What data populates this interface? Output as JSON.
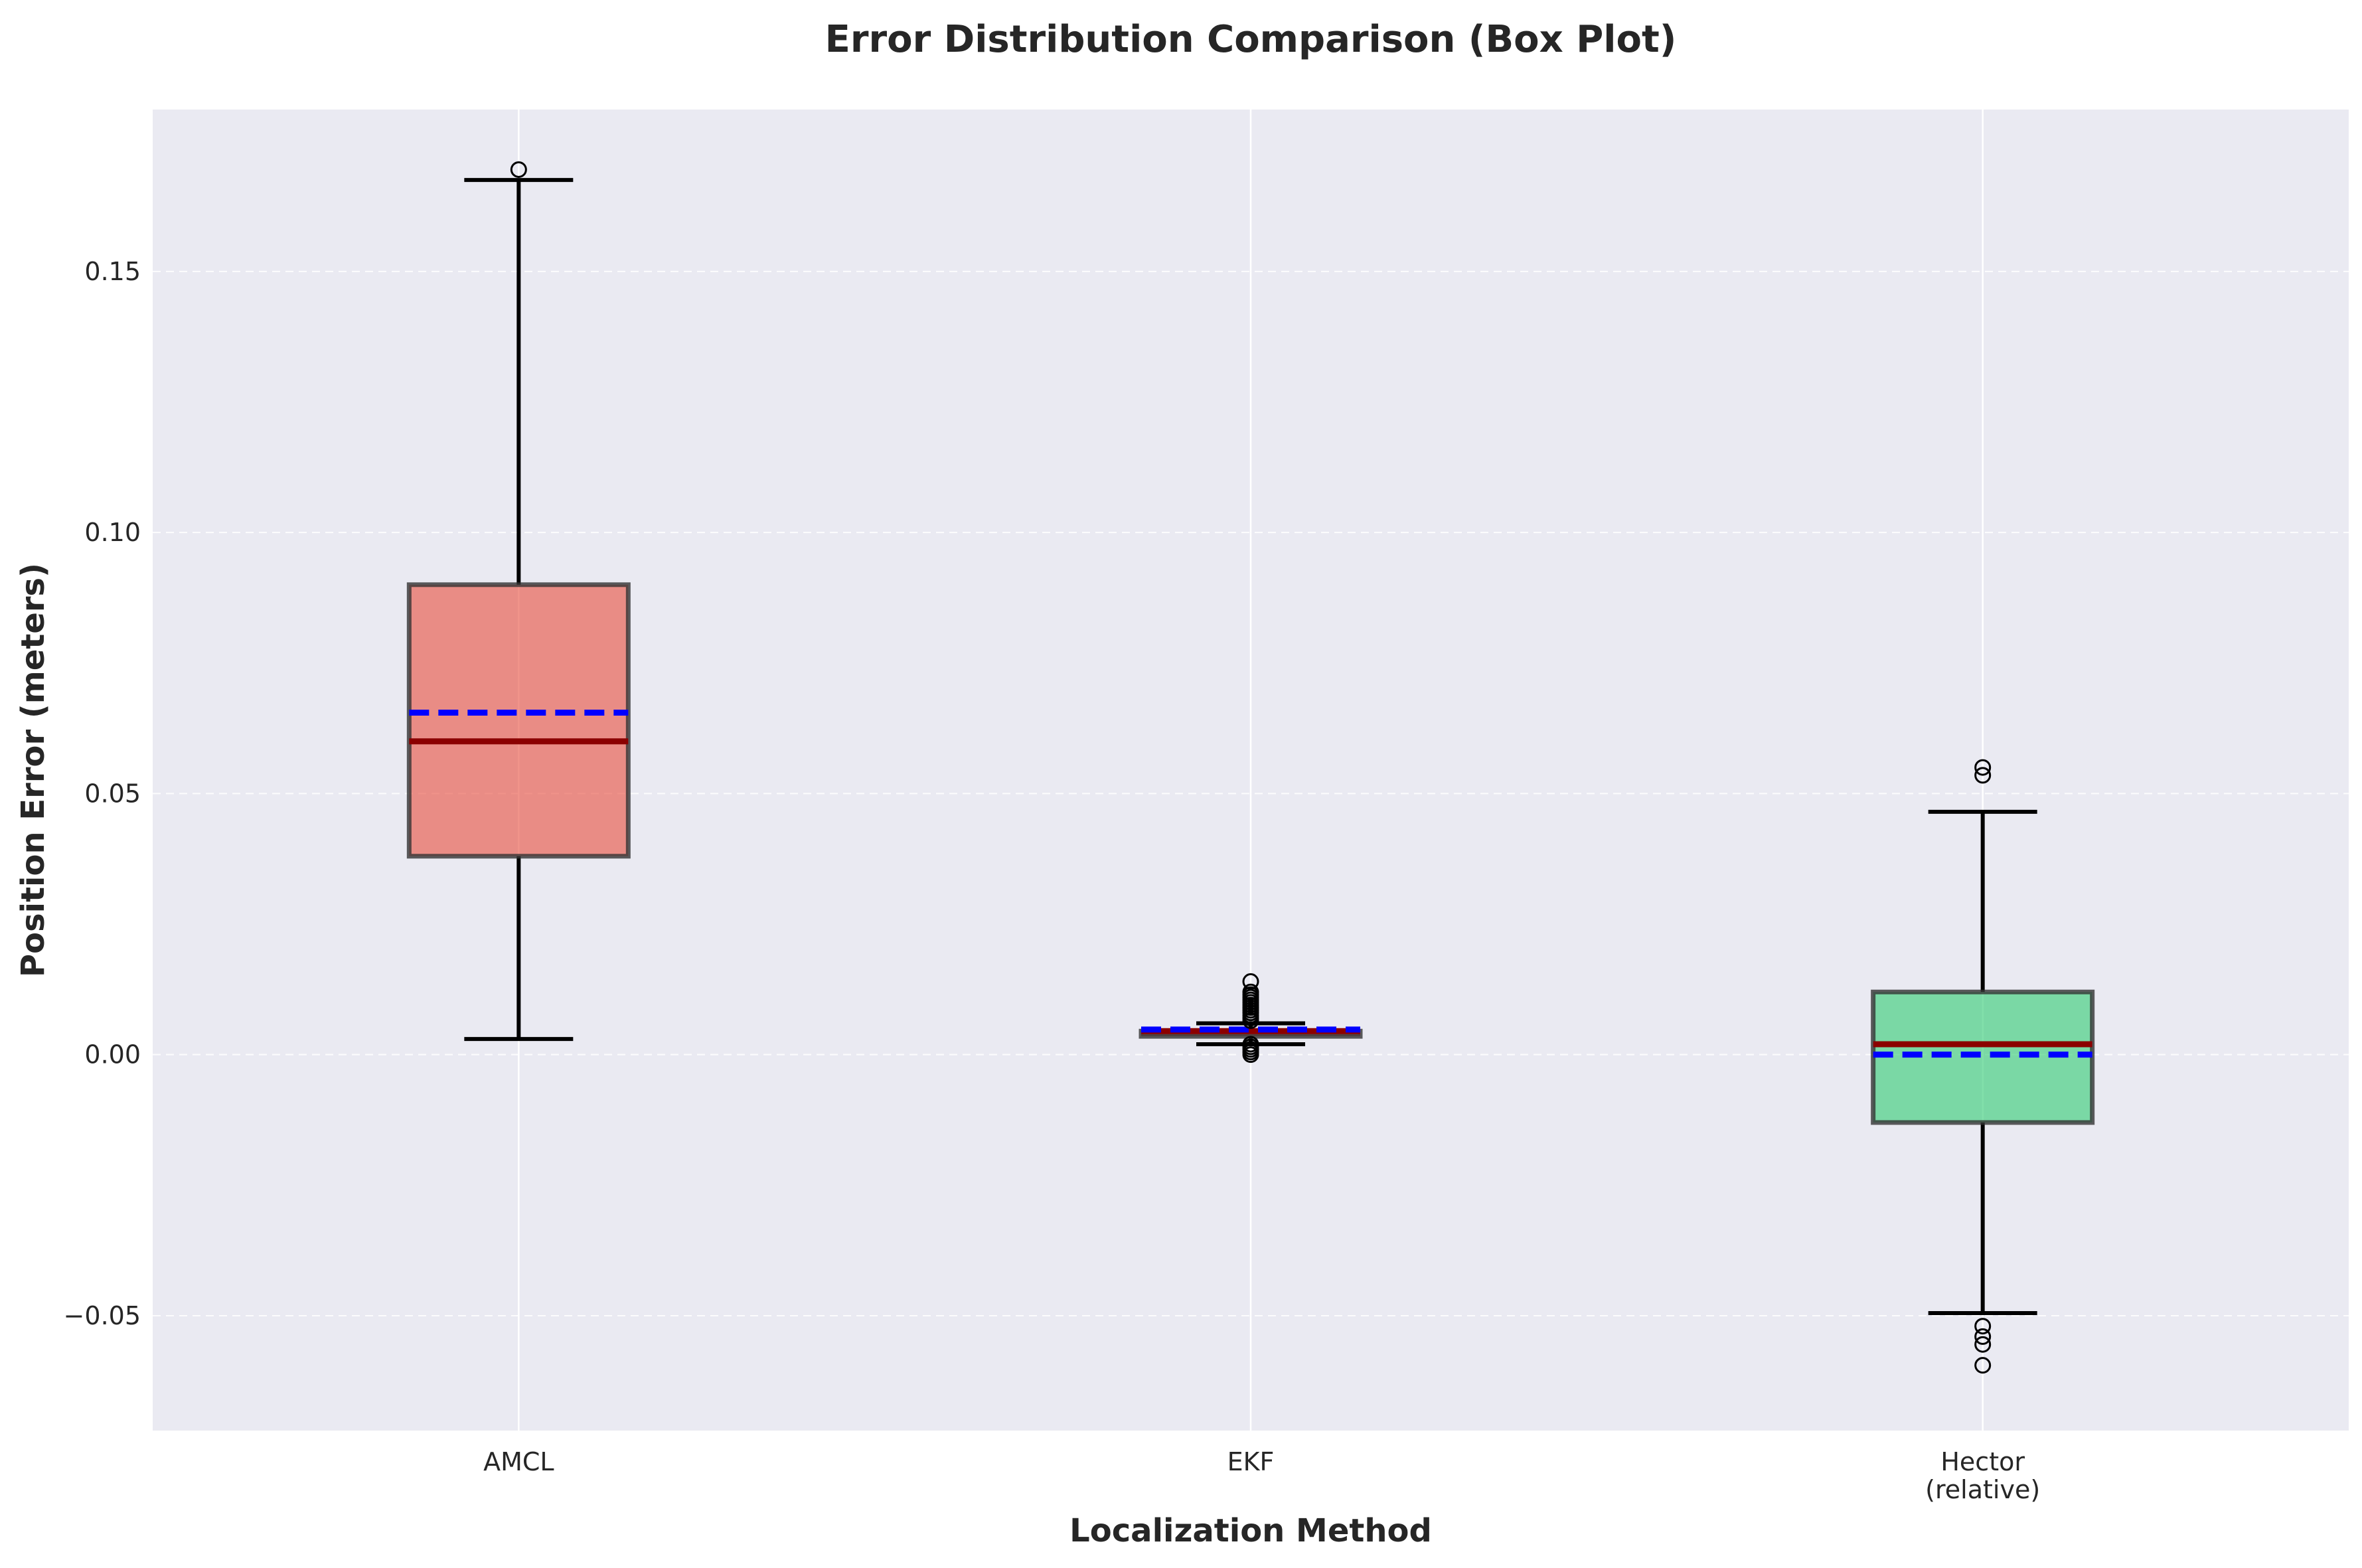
{
  "chart_data": {
    "type": "box",
    "title": "Error Distribution Comparison (Box Plot)",
    "xlabel": "Localization Method",
    "ylabel": "Position Error (meters)",
    "ylim": [
      -0.072,
      0.181
    ],
    "yticks": [
      -0.05,
      0.0,
      0.05,
      0.1,
      0.15
    ],
    "ytick_labels": [
      "−0.05",
      "0.00",
      "0.05",
      "0.10",
      "0.15"
    ],
    "grid": true,
    "categories": [
      {
        "lines": [
          "AMCL"
        ]
      },
      {
        "lines": [
          "EKF"
        ]
      },
      {
        "lines": [
          "Hector",
          "(relative)"
        ]
      }
    ],
    "boxes": [
      {
        "name": "AMCL",
        "whisker_low": 0.003,
        "q1": 0.038,
        "median": 0.06,
        "mean": 0.0655,
        "q3": 0.09,
        "whisker_high": 0.1675,
        "outliers": [
          0.1695
        ],
        "color": "#e74c3c"
      },
      {
        "name": "EKF",
        "whisker_low": 0.002,
        "q1": 0.0035,
        "median": 0.0045,
        "mean": 0.0048,
        "q3": 0.0045,
        "whisker_high": 0.006,
        "outliers": [
          0.0,
          0.0005,
          0.001,
          0.0015,
          0.002,
          0.0065,
          0.007,
          0.0075,
          0.008,
          0.0085,
          0.009,
          0.0095,
          0.01,
          0.0105,
          0.011,
          0.0115,
          0.012,
          0.014
        ],
        "color": "#8b1a1a"
      },
      {
        "name": "Hector (relative)",
        "whisker_low": -0.0495,
        "q1": -0.013,
        "median": 0.002,
        "mean": 0.0,
        "q3": 0.012,
        "whisker_high": 0.0465,
        "outliers": [
          0.055,
          0.0535,
          -0.052,
          -0.054,
          -0.0555,
          -0.0595
        ],
        "color": "#2ecc71"
      }
    ],
    "colors": {
      "background": "#eaeaf2",
      "grid": "#ffffff",
      "median": "#8b0000",
      "mean": "#0000ff",
      "whisker": "#000000",
      "box_edge": "#333333"
    }
  }
}
